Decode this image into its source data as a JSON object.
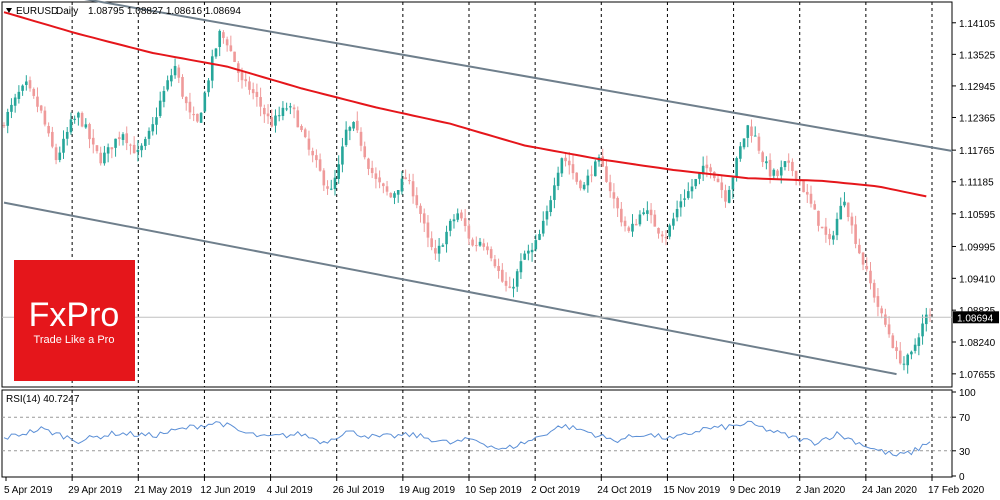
{
  "header": {
    "symbol": "EURUSD",
    "timeframe": "Daily",
    "ohlc": "1.08795 1.08827 1.08616 1.08694"
  },
  "logo": {
    "brand": "FxPro",
    "tagline": "Trade Like a Pro",
    "color": "#e5161b"
  },
  "colors": {
    "bull": "#26a69a",
    "bear": "#ef9a9a",
    "ma": "#e5161b",
    "channel": "#6f7f8c",
    "rsi": "#5b8fd6",
    "grid": "#000000"
  },
  "price_axis": {
    "ticks": [
      "1.14105",
      "1.13525",
      "1.12945",
      "1.12365",
      "1.11765",
      "1.11185",
      "1.10595",
      "1.09995",
      "1.09410",
      "1.08825",
      "1.08240",
      "1.07655"
    ],
    "current_label": "1.08694"
  },
  "rsi": {
    "label": "RSI(14) 40.7247",
    "ticks": [
      "100",
      "70",
      "30",
      "0"
    ]
  },
  "date_axis": {
    "labels": [
      "5 Apr 2019",
      "29 Apr 2019",
      "21 May 2019",
      "12 Jun 2019",
      "4 Jul 2019",
      "26 Jul 2019",
      "19 Aug 2019",
      "10 Sep 2019",
      "2 Oct 2019",
      "24 Oct 2019",
      "15 Nov 2019",
      "9 Dec 2019",
      "2 Jan 2020",
      "24 Jan 2020",
      "17 Feb 2020"
    ]
  },
  "chart_data": {
    "type": "candlestick",
    "symbol": "EURUSD",
    "timeframe": "Daily",
    "current_price": 1.08694,
    "price_range": [
      1.0745,
      1.1445
    ],
    "close_path": [
      [
        0,
        1.123
      ],
      [
        2,
        1.1255
      ],
      [
        4,
        1.128
      ],
      [
        6,
        1.1295
      ],
      [
        8,
        1.127
      ],
      [
        10,
        1.1245
      ],
      [
        12,
        1.12
      ],
      [
        14,
        1.116
      ],
      [
        16,
        1.119
      ],
      [
        18,
        1.1225
      ],
      [
        20,
        1.124
      ],
      [
        22,
        1.1215
      ],
      [
        24,
        1.118
      ],
      [
        26,
        1.116
      ],
      [
        28,
        1.1175
      ],
      [
        30,
        1.1195
      ],
      [
        32,
        1.121
      ],
      [
        34,
        1.1185
      ],
      [
        36,
        1.117
      ],
      [
        38,
        1.119
      ],
      [
        40,
        1.122
      ],
      [
        42,
        1.1265
      ],
      [
        44,
        1.13
      ],
      [
        46,
        1.133
      ],
      [
        48,
        1.128
      ],
      [
        50,
        1.124
      ],
      [
        52,
        1.1225
      ],
      [
        54,
        1.128
      ],
      [
        56,
        1.134
      ],
      [
        58,
        1.139
      ],
      [
        60,
        1.1375
      ],
      [
        62,
        1.134
      ],
      [
        64,
        1.13
      ],
      [
        66,
        1.129
      ],
      [
        68,
        1.127
      ],
      [
        70,
        1.1245
      ],
      [
        72,
        1.1225
      ],
      [
        74,
        1.124
      ],
      [
        76,
        1.1255
      ],
      [
        78,
        1.1245
      ],
      [
        80,
        1.121
      ],
      [
        82,
        1.1175
      ],
      [
        84,
        1.115
      ],
      [
        86,
        1.112
      ],
      [
        88,
        1.11
      ],
      [
        90,
        1.1145
      ],
      [
        92,
        1.121
      ],
      [
        94,
        1.122
      ],
      [
        96,
        1.119
      ],
      [
        98,
        1.115
      ],
      [
        100,
        1.112
      ],
      [
        102,
        1.1105
      ],
      [
        104,
        1.109
      ],
      [
        106,
        1.111
      ],
      [
        108,
        1.1125
      ],
      [
        110,
        1.11
      ],
      [
        112,
        1.106
      ],
      [
        114,
        1.101
      ],
      [
        116,
        1.098
      ],
      [
        118,
        1.101
      ],
      [
        120,
        1.104
      ],
      [
        122,
        1.106
      ],
      [
        124,
        1.1035
      ],
      [
        126,
        1.1
      ],
      [
        128,
        1.101
      ],
      [
        130,
        1.1
      ],
      [
        132,
        1.097
      ],
      [
        134,
        1.0935
      ],
      [
        136,
        1.0915
      ],
      [
        138,
        1.095
      ],
      [
        140,
        1.0985
      ],
      [
        142,
        1.099
      ],
      [
        144,
        1.102
      ],
      [
        146,
        1.106
      ],
      [
        148,
        1.112
      ],
      [
        150,
        1.1165
      ],
      [
        152,
        1.115
      ],
      [
        154,
        1.112
      ],
      [
        156,
        1.111
      ],
      [
        158,
        1.114
      ],
      [
        160,
        1.1155
      ],
      [
        162,
        1.1125
      ],
      [
        164,
        1.1085
      ],
      [
        166,
        1.105
      ],
      [
        168,
        1.1025
      ],
      [
        170,
        1.1045
      ],
      [
        172,
        1.107
      ],
      [
        174,
        1.105
      ],
      [
        176,
        1.103
      ],
      [
        178,
        1.102
      ],
      [
        180,
        1.105
      ],
      [
        182,
        1.1085
      ],
      [
        184,
        1.11
      ],
      [
        186,
        1.112
      ],
      [
        188,
        1.114
      ],
      [
        190,
        1.1145
      ],
      [
        192,
        1.112
      ],
      [
        194,
        1.109
      ],
      [
        196,
        1.113
      ],
      [
        198,
        1.118
      ],
      [
        200,
        1.122
      ],
      [
        202,
        1.12
      ],
      [
        204,
        1.116
      ],
      [
        206,
        1.1135
      ],
      [
        208,
        1.113
      ],
      [
        210,
        1.115
      ],
      [
        212,
        1.114
      ],
      [
        214,
        1.112
      ],
      [
        216,
        1.109
      ],
      [
        218,
        1.106
      ],
      [
        220,
        1.103
      ],
      [
        222,
        1.1005
      ],
      [
        224,
        1.105
      ],
      [
        226,
        1.109
      ],
      [
        228,
        1.1035
      ],
      [
        230,
        1.099
      ],
      [
        232,
        1.095
      ],
      [
        234,
        1.091
      ],
      [
        236,
        1.087
      ],
      [
        238,
        1.084
      ],
      [
        240,
        1.08
      ],
      [
        242,
        1.0785
      ],
      [
        244,
        1.08
      ],
      [
        246,
        1.084
      ],
      [
        248,
        1.087
      ],
      [
        249,
        1.08694
      ]
    ],
    "moving_average": [
      [
        0,
        1.143
      ],
      [
        20,
        1.139
      ],
      [
        40,
        1.1355
      ],
      [
        60,
        1.133
      ],
      [
        80,
        1.129
      ],
      [
        100,
        1.1255
      ],
      [
        120,
        1.1225
      ],
      [
        140,
        1.1185
      ],
      [
        160,
        1.116
      ],
      [
        180,
        1.114
      ],
      [
        200,
        1.1125
      ],
      [
        220,
        1.112
      ],
      [
        235,
        1.111
      ],
      [
        249,
        1.109
      ]
    ],
    "channel": {
      "upper": [
        [
          0,
          1.148
        ],
        [
          255,
          1.1175
        ]
      ],
      "lower": [
        [
          0,
          1.108
        ],
        [
          240,
          1.0765
        ]
      ]
    },
    "rsi": {
      "period": 14,
      "last": 40.7247,
      "ylim": [
        0,
        100
      ],
      "levels": [
        70,
        30
      ],
      "path": [
        [
          0,
          45
        ],
        [
          10,
          56
        ],
        [
          20,
          42
        ],
        [
          30,
          51
        ],
        [
          40,
          48
        ],
        [
          50,
          58
        ],
        [
          58,
          64
        ],
        [
          64,
          52
        ],
        [
          70,
          46
        ],
        [
          80,
          50
        ],
        [
          86,
          40
        ],
        [
          92,
          53
        ],
        [
          100,
          46
        ],
        [
          110,
          49
        ],
        [
          120,
          39
        ],
        [
          126,
          44
        ],
        [
          134,
          31
        ],
        [
          142,
          43
        ],
        [
          150,
          60
        ],
        [
          156,
          54
        ],
        [
          164,
          42
        ],
        [
          172,
          50
        ],
        [
          180,
          44
        ],
        [
          188,
          56
        ],
        [
          196,
          59
        ],
        [
          200,
          63
        ],
        [
          206,
          54
        ],
        [
          212,
          46
        ],
        [
          218,
          40
        ],
        [
          224,
          50
        ],
        [
          228,
          43
        ],
        [
          234,
          32
        ],
        [
          240,
          24
        ],
        [
          244,
          28
        ],
        [
          249,
          40.72
        ]
      ]
    }
  }
}
